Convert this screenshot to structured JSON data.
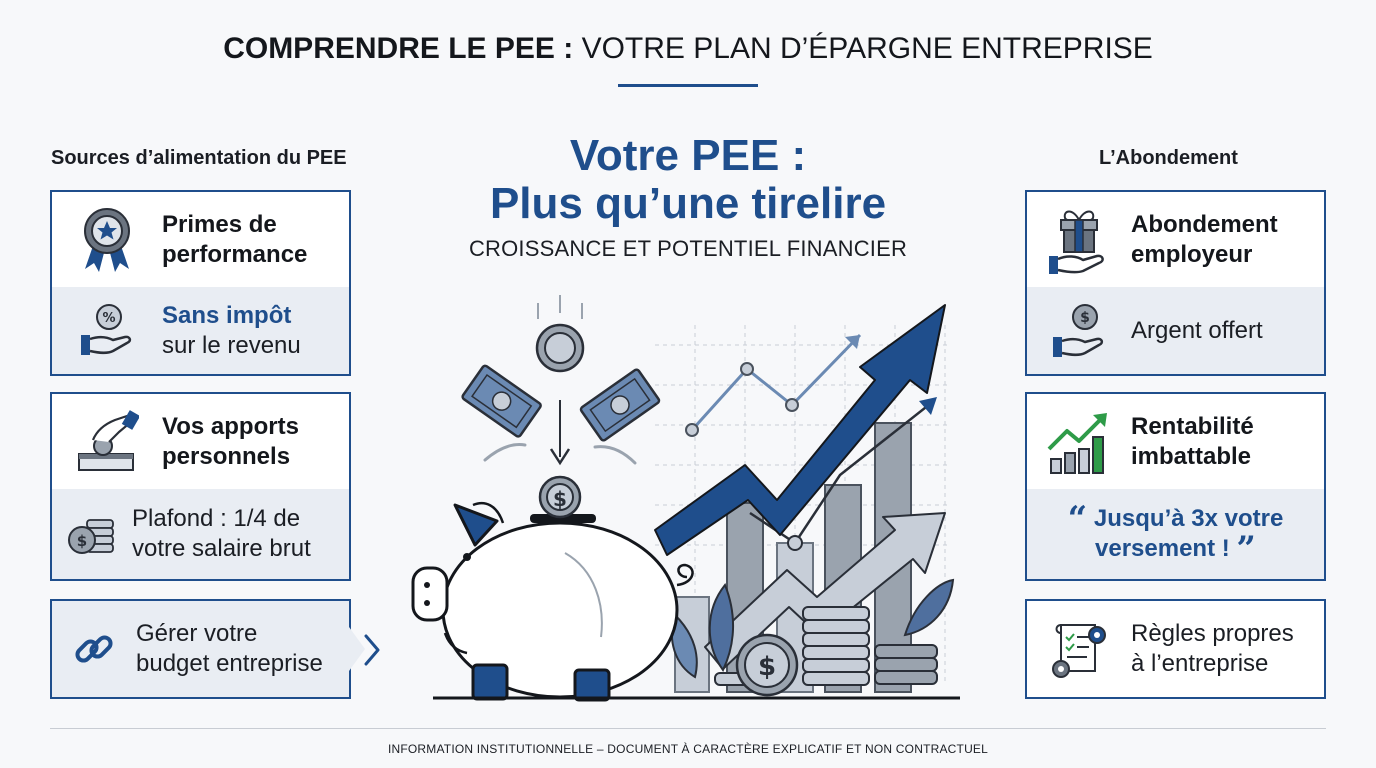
{
  "header": {
    "title_bold": "COMPRENDRE LE PEE :",
    "title_rest": " VOTRE PLAN D’ÉPARGNE ENTREPRISE"
  },
  "left": {
    "heading": "Sources d’alimentation du PEE",
    "card1": {
      "title_line1": "Primes de",
      "title_line2": "performance",
      "sub_bold": "Sans impôt",
      "sub_rest": "sur le revenu",
      "icon_top": "award-ribbon-icon",
      "icon_sub": "hand-percent-coin-icon"
    },
    "card2": {
      "title_line1": "Vos apports",
      "title_line2": "personnels",
      "sub_line1": "Plafond : 1/4 de",
      "sub_line2": "votre salaire brut",
      "icon_top": "hand-deposit-box-icon",
      "icon_sub": "coin-stack-icon"
    },
    "card3": {
      "line1": "Gérer votre",
      "line2": "budget entreprise",
      "icon": "link-chain-icon"
    }
  },
  "center": {
    "title_line1": "Votre PEE :",
    "title_line2": "Plus qu’une tirelire",
    "subtitle": "CROISSANCE ET POTENTIEL FINANCIER"
  },
  "right": {
    "heading": "L’Abondement",
    "card1": {
      "title_line1": "Abondement",
      "title_line2": "employeur",
      "sub": "Argent offert",
      "icon_top": "gift-hand-icon",
      "icon_sub": "hand-dollar-coin-icon"
    },
    "card2": {
      "title_line1": "Rentabilité",
      "title_line2": "imbattable",
      "quote_line1": "Jusqu’à 3x votre",
      "quote_line2": "versement !",
      "quote_open": "“",
      "quote_close": "”",
      "icon_top": "growth-bars-icon"
    },
    "card3": {
      "line1": "Règles propres",
      "line2": "à l’entreprise",
      "icon": "rules-document-gear-icon"
    }
  },
  "footer": {
    "text": "INFORMATION INSTITUTIONNELLE – DOCUMENT À CARACTÈRE EXPLICATIF ET NON CONTRACTUEL"
  },
  "colors": {
    "brand_blue": "#1f4e8c",
    "accent_green": "#2e9b48",
    "panel_grey": "#e9edf3"
  }
}
